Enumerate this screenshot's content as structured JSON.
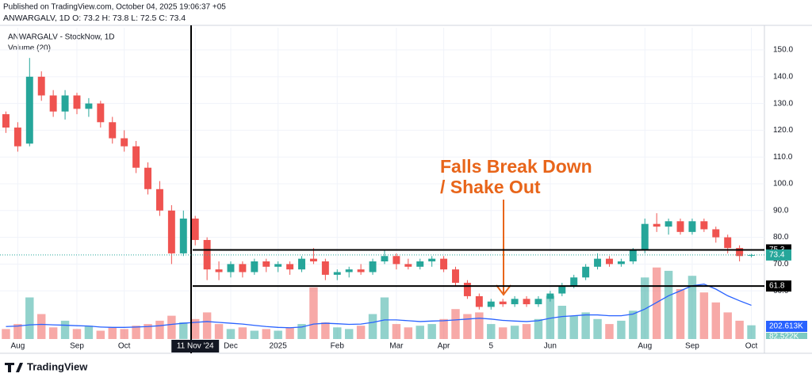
{
  "header": {
    "published": "Published on TradingView.com, October 04, 2025 19:06:37 +05",
    "quote": "ANWARGALV, 1D  O: 73.2 H: 73.8 L: 72.5 C: 73.4"
  },
  "footer": {
    "brand": "TradingView"
  },
  "chart_data": {
    "type": "candlestick",
    "title": "ANWARGALV - StockNow, 1D",
    "annotation": [
      "Falls Break Down",
      "/ Shake Out"
    ],
    "categories": [
      null,
      "Aug",
      null,
      null,
      null,
      null,
      "Sep",
      null,
      null,
      null,
      "Oct",
      null,
      null,
      null,
      null,
      null,
      "11 Nov '24",
      null,
      null,
      "Dec",
      null,
      null,
      null,
      "2025",
      null,
      null,
      null,
      null,
      "Feb",
      null,
      null,
      null,
      null,
      "Mar",
      null,
      null,
      null,
      "Apr",
      null,
      null,
      null,
      "5",
      null,
      null,
      null,
      null,
      "Jun",
      null,
      null,
      null,
      null,
      null,
      null,
      null,
      "Aug",
      null,
      null,
      null,
      "Sep",
      null,
      null,
      null,
      null,
      "Oct"
    ],
    "ohlc": [
      [
        126,
        127,
        119,
        121
      ],
      [
        121,
        123,
        112,
        114
      ],
      [
        115,
        147,
        114,
        140
      ],
      [
        140,
        142,
        131,
        133
      ],
      [
        133,
        135,
        125,
        127
      ],
      [
        127,
        135,
        124,
        133
      ],
      [
        133,
        134,
        126,
        128
      ],
      [
        128,
        132,
        125,
        130
      ],
      [
        130,
        131,
        121,
        123
      ],
      [
        123,
        125,
        115,
        117
      ],
      [
        117,
        120,
        112,
        114
      ],
      [
        114,
        116,
        104,
        106
      ],
      [
        106,
        108,
        96,
        98
      ],
      [
        98,
        101,
        88,
        90
      ],
      [
        90,
        92,
        70,
        74
      ],
      [
        74,
        90,
        73,
        87
      ],
      [
        87,
        88,
        77,
        79
      ],
      [
        79,
        80,
        64,
        68
      ],
      [
        68,
        71,
        64,
        67
      ],
      [
        67,
        71,
        65,
        70
      ],
      [
        70,
        71,
        65,
        67
      ],
      [
        67,
        72,
        66,
        71
      ],
      [
        71,
        72,
        67,
        69
      ],
      [
        69,
        71,
        67,
        70
      ],
      [
        70,
        71,
        66,
        68
      ],
      [
        68,
        73,
        67,
        72
      ],
      [
        72,
        76,
        70,
        71
      ],
      [
        71,
        72,
        64,
        66
      ],
      [
        66,
        68,
        64,
        67
      ],
      [
        67,
        69,
        65,
        68
      ],
      [
        68,
        70,
        66,
        67
      ],
      [
        67,
        72,
        66,
        71
      ],
      [
        71,
        75,
        70,
        73
      ],
      [
        73,
        74,
        68,
        70
      ],
      [
        70,
        72,
        68,
        69
      ],
      [
        69,
        72,
        68,
        71
      ],
      [
        71,
        73,
        69,
        72
      ],
      [
        72,
        73,
        67,
        68
      ],
      [
        68,
        69,
        62,
        63
      ],
      [
        63,
        64,
        57,
        58
      ],
      [
        58,
        59,
        53,
        54
      ],
      [
        54,
        57,
        53,
        56
      ],
      [
        56,
        57,
        54,
        55
      ],
      [
        55,
        58,
        54,
        57
      ],
      [
        57,
        58,
        54,
        55
      ],
      [
        55,
        58,
        54,
        57
      ],
      [
        57,
        60,
        56,
        59
      ],
      [
        59,
        63,
        58,
        62
      ],
      [
        62,
        66,
        61,
        65
      ],
      [
        65,
        70,
        64,
        69
      ],
      [
        69,
        74,
        68,
        72
      ],
      [
        72,
        73,
        69,
        70
      ],
      [
        70,
        72,
        69,
        71
      ],
      [
        71,
        76,
        70,
        75
      ],
      [
        75,
        87,
        74,
        85
      ],
      [
        85,
        89,
        82,
        84
      ],
      [
        84,
        87,
        81,
        86
      ],
      [
        86,
        87,
        81,
        82
      ],
      [
        82,
        87,
        81,
        86
      ],
      [
        86,
        87,
        82,
        83
      ],
      [
        83,
        84,
        78,
        80
      ],
      [
        80,
        81,
        74,
        76
      ],
      [
        76,
        77,
        71,
        73
      ],
      [
        73.2,
        73.8,
        72.5,
        73.4
      ]
    ],
    "up_color": "#26a69a",
    "down_color": "#ef5350",
    "volume": {
      "name": "Volume (20)",
      "values": [
        60000,
        90000,
        250000,
        150000,
        70000,
        110000,
        60000,
        80000,
        50000,
        70000,
        60000,
        80000,
        90000,
        110000,
        140000,
        100000,
        120000,
        160000,
        90000,
        60000,
        70000,
        50000,
        60000,
        50000,
        70000,
        90000,
        310000,
        100000,
        70000,
        60000,
        80000,
        150000,
        250000,
        90000,
        70000,
        80000,
        90000,
        120000,
        180000,
        150000,
        160000,
        90000,
        70000,
        80000,
        90000,
        120000,
        260000,
        200000,
        140000,
        160000,
        120000,
        90000,
        110000,
        170000,
        370000,
        430000,
        410000,
        300000,
        380000,
        280000,
        220000,
        160000,
        110000,
        82522
      ],
      "last_label": "82.522K"
    },
    "volume_ma": {
      "color": "#2962ff",
      "values": [
        75000,
        78000,
        85000,
        88000,
        85000,
        83000,
        80000,
        78000,
        72000,
        70000,
        70000,
        72000,
        75000,
        80000,
        88000,
        95000,
        100000,
        105000,
        100000,
        95000,
        90000,
        82000,
        75000,
        70000,
        68000,
        72000,
        90000,
        95000,
        92000,
        88000,
        90000,
        100000,
        115000,
        115000,
        110000,
        105000,
        108000,
        110000,
        115000,
        120000,
        125000,
        120000,
        112000,
        108000,
        105000,
        110000,
        125000,
        135000,
        140000,
        145000,
        145000,
        140000,
        140000,
        150000,
        180000,
        220000,
        260000,
        290000,
        320000,
        330000,
        300000,
        260000,
        230000,
        202613
      ],
      "last_label": "202.613K"
    },
    "vlim": [
      0,
      1000000
    ],
    "levels": [
      75.3,
      61.8
    ],
    "ylim": [
      42,
      158.3
    ],
    "yticks": [
      {
        "value": 60,
        "label": "60.0"
      },
      {
        "value": 70,
        "label": "70.0"
      },
      {
        "value": 80,
        "label": "80.0"
      },
      {
        "value": 90,
        "label": "90.0"
      },
      {
        "value": 100,
        "label": "100.0"
      },
      {
        "value": 110,
        "label": "110.0"
      },
      {
        "value": 120,
        "label": "120.0"
      },
      {
        "value": 130,
        "label": "130.0"
      },
      {
        "value": 140,
        "label": "140.0"
      },
      {
        "value": 150,
        "label": "150.0"
      }
    ],
    "grid": true
  }
}
